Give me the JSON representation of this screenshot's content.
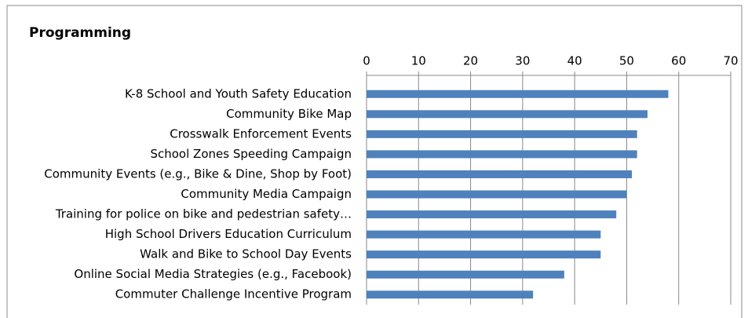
{
  "chart_data": {
    "type": "barh",
    "title": "Programming",
    "categories": [
      "K-8 School and Youth Safety Education",
      "Community Bike Map",
      "Crosswalk Enforcement Events",
      "School Zones Speeding Campaign",
      "Community Events (e.g., Bike & Dine, Shop by Foot)",
      "Community Media Campaign",
      "Training for police on bike and pedestrian safety…",
      "High School Drivers Education Curriculum",
      "Walk and Bike to School Day Events",
      "Online Social Media Strategies (e.g., Facebook)",
      "Commuter Challenge Incentive Program"
    ],
    "values": [
      58,
      54,
      52,
      52,
      51,
      50,
      48,
      45,
      45,
      38,
      32
    ],
    "color": "#4f81bd",
    "xlim": [
      0,
      70
    ],
    "xticks": [
      0,
      10,
      20,
      30,
      40,
      50,
      60,
      70
    ],
    "grid": true
  }
}
